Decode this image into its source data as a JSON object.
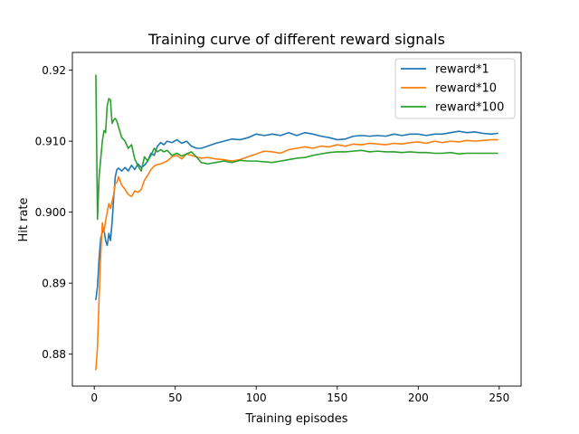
{
  "chart_data": {
    "type": "line",
    "title": "Training curve of different reward signals",
    "xlabel": "Training episodes",
    "ylabel": "Hit rate",
    "xlim": [
      -13.5,
      263.5
    ],
    "ylim": [
      0.8755,
      0.9225
    ],
    "xticks": [
      0,
      50,
      100,
      150,
      200,
      250
    ],
    "yticks": [
      0.88,
      0.89,
      0.9,
      0.91,
      0.92
    ],
    "ytick_labels": [
      "0.88",
      "0.89",
      "0.900",
      "0.910",
      "0.92"
    ],
    "legend_position": "top-right",
    "grid": false,
    "series": [
      {
        "name": "reward*1",
        "color": "#1f77b4",
        "points": [
          [
            1,
            0.8877
          ],
          [
            2,
            0.8895
          ],
          [
            3,
            0.8935
          ],
          [
            4,
            0.8963
          ],
          [
            5,
            0.8972
          ],
          [
            6,
            0.8975
          ],
          [
            7,
            0.896
          ],
          [
            8,
            0.8953
          ],
          [
            9,
            0.897
          ],
          [
            10,
            0.896
          ],
          [
            11,
            0.8985
          ],
          [
            12,
            0.902
          ],
          [
            13,
            0.905
          ],
          [
            14,
            0.906
          ],
          [
            15,
            0.9062
          ],
          [
            17,
            0.9058
          ],
          [
            19,
            0.9063
          ],
          [
            21,
            0.9058
          ],
          [
            23,
            0.9066
          ],
          [
            25,
            0.906
          ],
          [
            27,
            0.9068
          ],
          [
            29,
            0.9063
          ],
          [
            31,
            0.9066
          ],
          [
            33,
            0.9072
          ],
          [
            35,
            0.9083
          ],
          [
            37,
            0.908
          ],
          [
            39,
            0.9093
          ],
          [
            41,
            0.9098
          ],
          [
            43,
            0.9095
          ],
          [
            45,
            0.91
          ],
          [
            48,
            0.9098
          ],
          [
            51,
            0.9102
          ],
          [
            54,
            0.9097
          ],
          [
            57,
            0.91
          ],
          [
            60,
            0.9093
          ],
          [
            63,
            0.909
          ],
          [
            66,
            0.909
          ],
          [
            70,
            0.9093
          ],
          [
            75,
            0.9097
          ],
          [
            80,
            0.91
          ],
          [
            85,
            0.9103
          ],
          [
            90,
            0.9102
          ],
          [
            95,
            0.9105
          ],
          [
            100,
            0.911
          ],
          [
            105,
            0.9108
          ],
          [
            110,
            0.911
          ],
          [
            115,
            0.9108
          ],
          [
            120,
            0.9112
          ],
          [
            125,
            0.9108
          ],
          [
            130,
            0.9112
          ],
          [
            135,
            0.911
          ],
          [
            140,
            0.9107
          ],
          [
            145,
            0.9105
          ],
          [
            150,
            0.9102
          ],
          [
            155,
            0.9103
          ],
          [
            160,
            0.9107
          ],
          [
            165,
            0.9108
          ],
          [
            170,
            0.9107
          ],
          [
            175,
            0.9108
          ],
          [
            180,
            0.9107
          ],
          [
            185,
            0.911
          ],
          [
            190,
            0.9108
          ],
          [
            195,
            0.911
          ],
          [
            200,
            0.911
          ],
          [
            205,
            0.9108
          ],
          [
            210,
            0.911
          ],
          [
            215,
            0.911
          ],
          [
            220,
            0.9112
          ],
          [
            225,
            0.9114
          ],
          [
            230,
            0.9112
          ],
          [
            235,
            0.9113
          ],
          [
            240,
            0.9111
          ],
          [
            245,
            0.911
          ],
          [
            249,
            0.9111
          ]
        ]
      },
      {
        "name": "reward*10",
        "color": "#ff7f0e",
        "points": [
          [
            1,
            0.8778
          ],
          [
            2,
            0.881
          ],
          [
            3,
            0.888
          ],
          [
            4,
            0.894
          ],
          [
            5,
            0.8985
          ],
          [
            6,
            0.8972
          ],
          [
            7,
            0.8988
          ],
          [
            8,
            0.9
          ],
          [
            9,
            0.9012
          ],
          [
            10,
            0.9005
          ],
          [
            11,
            0.9015
          ],
          [
            12,
            0.9025
          ],
          [
            13,
            0.904
          ],
          [
            14,
            0.9042
          ],
          [
            15,
            0.905
          ],
          [
            17,
            0.9038
          ],
          [
            19,
            0.9032
          ],
          [
            21,
            0.9025
          ],
          [
            23,
            0.9022
          ],
          [
            25,
            0.903
          ],
          [
            27,
            0.9028
          ],
          [
            29,
            0.9032
          ],
          [
            31,
            0.9045
          ],
          [
            33,
            0.9052
          ],
          [
            35,
            0.906
          ],
          [
            37,
            0.9065
          ],
          [
            39,
            0.9067
          ],
          [
            41,
            0.9068
          ],
          [
            43,
            0.907
          ],
          [
            45,
            0.9072
          ],
          [
            48,
            0.9078
          ],
          [
            51,
            0.908
          ],
          [
            54,
            0.9075
          ],
          [
            57,
            0.9082
          ],
          [
            60,
            0.908
          ],
          [
            63,
            0.9078
          ],
          [
            66,
            0.9076
          ],
          [
            70,
            0.9077
          ],
          [
            75,
            0.9075
          ],
          [
            80,
            0.9074
          ],
          [
            85,
            0.9072
          ],
          [
            90,
            0.9074
          ],
          [
            95,
            0.9078
          ],
          [
            100,
            0.9082
          ],
          [
            105,
            0.9086
          ],
          [
            110,
            0.9085
          ],
          [
            115,
            0.9083
          ],
          [
            120,
            0.9088
          ],
          [
            125,
            0.909
          ],
          [
            130,
            0.9092
          ],
          [
            135,
            0.909
          ],
          [
            140,
            0.9093
          ],
          [
            145,
            0.9092
          ],
          [
            150,
            0.9095
          ],
          [
            155,
            0.9093
          ],
          [
            160,
            0.9096
          ],
          [
            165,
            0.9095
          ],
          [
            170,
            0.9097
          ],
          [
            175,
            0.9096
          ],
          [
            180,
            0.9095
          ],
          [
            185,
            0.9097
          ],
          [
            190,
            0.9096
          ],
          [
            195,
            0.9098
          ],
          [
            200,
            0.9099
          ],
          [
            205,
            0.9097
          ],
          [
            210,
            0.91
          ],
          [
            215,
            0.9098
          ],
          [
            220,
            0.91
          ],
          [
            225,
            0.9099
          ],
          [
            230,
            0.9101
          ],
          [
            235,
            0.91
          ],
          [
            240,
            0.9101
          ],
          [
            245,
            0.9102
          ],
          [
            249,
            0.9102
          ]
        ]
      },
      {
        "name": "reward*100",
        "color": "#2ca02c",
        "points": [
          [
            1,
            0.9193
          ],
          [
            2,
            0.899
          ],
          [
            3,
            0.905
          ],
          [
            4,
            0.9075
          ],
          [
            5,
            0.91
          ],
          [
            6,
            0.9115
          ],
          [
            7,
            0.9112
          ],
          [
            8,
            0.915
          ],
          [
            9,
            0.916
          ],
          [
            10,
            0.9158
          ],
          [
            11,
            0.9125
          ],
          [
            12,
            0.913
          ],
          [
            13,
            0.9132
          ],
          [
            14,
            0.9128
          ],
          [
            15,
            0.912
          ],
          [
            17,
            0.9105
          ],
          [
            19,
            0.91
          ],
          [
            21,
            0.909
          ],
          [
            23,
            0.9095
          ],
          [
            25,
            0.9075
          ],
          [
            27,
            0.9065
          ],
          [
            29,
            0.9058
          ],
          [
            31,
            0.9078
          ],
          [
            33,
            0.9072
          ],
          [
            35,
            0.908
          ],
          [
            37,
            0.909
          ],
          [
            39,
            0.9085
          ],
          [
            41,
            0.9088
          ],
          [
            43,
            0.9085
          ],
          [
            45,
            0.9087
          ],
          [
            48,
            0.908
          ],
          [
            51,
            0.9083
          ],
          [
            54,
            0.9079
          ],
          [
            57,
            0.9082
          ],
          [
            60,
            0.9085
          ],
          [
            63,
            0.9078
          ],
          [
            66,
            0.907
          ],
          [
            70,
            0.9068
          ],
          [
            75,
            0.907
          ],
          [
            80,
            0.9072
          ],
          [
            85,
            0.907
          ],
          [
            90,
            0.9073
          ],
          [
            95,
            0.9072
          ],
          [
            100,
            0.9072
          ],
          [
            105,
            0.9071
          ],
          [
            110,
            0.907
          ],
          [
            115,
            0.9072
          ],
          [
            120,
            0.9074
          ],
          [
            125,
            0.9076
          ],
          [
            130,
            0.9077
          ],
          [
            135,
            0.908
          ],
          [
            140,
            0.9082
          ],
          [
            145,
            0.9084
          ],
          [
            150,
            0.9085
          ],
          [
            155,
            0.9085
          ],
          [
            160,
            0.9086
          ],
          [
            165,
            0.9087
          ],
          [
            170,
            0.9085
          ],
          [
            175,
            0.9086
          ],
          [
            180,
            0.9085
          ],
          [
            185,
            0.9085
          ],
          [
            190,
            0.9084
          ],
          [
            195,
            0.9085
          ],
          [
            200,
            0.9084
          ],
          [
            205,
            0.9084
          ],
          [
            210,
            0.9083
          ],
          [
            215,
            0.9083
          ],
          [
            220,
            0.9084
          ],
          [
            225,
            0.9082
          ],
          [
            230,
            0.9083
          ],
          [
            235,
            0.9083
          ],
          [
            240,
            0.9083
          ],
          [
            245,
            0.9083
          ],
          [
            249,
            0.9083
          ]
        ]
      }
    ]
  }
}
